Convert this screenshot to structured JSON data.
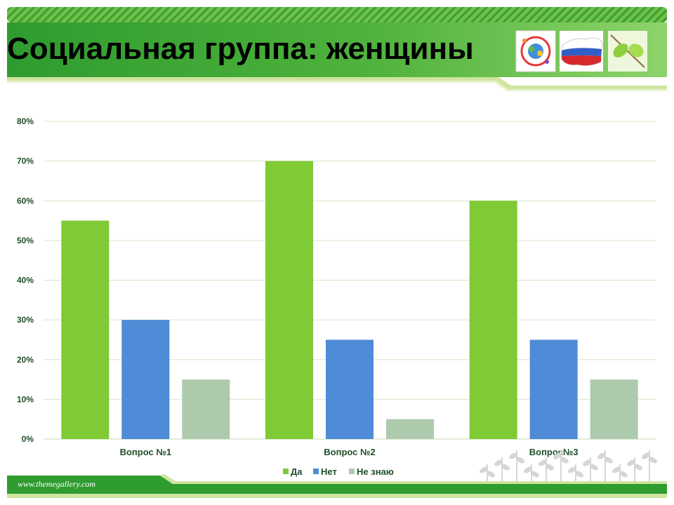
{
  "slide": {
    "title": "Социальная группа: женщины",
    "footer_url": "www.themegallery.com"
  },
  "colors": {
    "header_dark": "#2e9a2e",
    "header_light": "#8fd36a",
    "accent_line": "#cfe5a0",
    "grid": "#d8e6c8"
  },
  "chart_data": {
    "type": "bar",
    "categories": [
      "Вопрос №1",
      "Вопрос №2",
      "Вопрос№3"
    ],
    "series": [
      {
        "name": "Да",
        "values": [
          55,
          70,
          60
        ],
        "color": "#7fca35"
      },
      {
        "name": "Нет",
        "values": [
          30,
          25,
          25
        ],
        "color": "#4f8bd6"
      },
      {
        "name": "Не знаю",
        "values": [
          15,
          5,
          15
        ],
        "color": "#adcbac"
      }
    ],
    "ylim": [
      0,
      80
    ],
    "yticks": [
      "0%",
      "10%",
      "20%",
      "30%",
      "40%",
      "50%",
      "60%",
      "70%",
      "80%"
    ],
    "grid": true,
    "legend": "bottom-center"
  },
  "logos": [
    "tolerance-emblem-icon",
    "russia-flag-map-icon",
    "green-leaves-icon"
  ]
}
